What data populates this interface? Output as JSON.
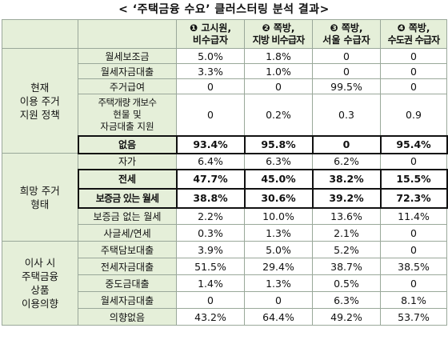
{
  "title": "< ‘주택금융 수요’  클러스터링 분석 결과>",
  "columns": [
    {
      "line1": "❶ 고시원,",
      "line2": "비수급자"
    },
    {
      "line1": "❷ 쪽방,",
      "line2": "지방 비수급자"
    },
    {
      "line1": "❸ 쪽방,",
      "line2": "서울 수급자"
    },
    {
      "line1": "❹ 쪽방,",
      "line2": "수도권 수급자"
    }
  ],
  "sections": [
    {
      "label": [
        "현재",
        "이용 주거",
        "지원 정책"
      ],
      "rows": [
        {
          "label": "월세보조금",
          "values": [
            "5.0%",
            "1.8%",
            "0",
            "0"
          ]
        },
        {
          "label": "월세자금대출",
          "values": [
            "3.3%",
            "1.0%",
            "0",
            "0"
          ]
        },
        {
          "label": "주거급여",
          "values": [
            "0",
            "0",
            "99.5%",
            "0"
          ]
        },
        {
          "label": [
            "주택개량 개보수",
            "현물 및",
            "자금대출 지원"
          ],
          "values": [
            "0",
            "0.2%",
            "0.3",
            "0.9"
          ]
        },
        {
          "label": "없음",
          "values": [
            "93.4%",
            "95.8%",
            "0",
            "95.4%"
          ]
        }
      ]
    },
    {
      "label": [
        "희망 주거",
        "형태"
      ],
      "rows": [
        {
          "label": "자가",
          "values": [
            "6.4%",
            "6.3%",
            "6.2%",
            "0"
          ]
        },
        {
          "label": "전세",
          "values": [
            "47.7%",
            "45.0%",
            "38.2%",
            "15.5%"
          ]
        },
        {
          "label": "보증금 있는 월세",
          "values": [
            "38.8%",
            "30.6%",
            "39.2%",
            "72.3%"
          ]
        },
        {
          "label": "보증금 없는 월세",
          "values": [
            "2.2%",
            "10.0%",
            "13.6%",
            "11.4%"
          ]
        },
        {
          "label": "사글세/연세",
          "values": [
            "0.3%",
            "1.3%",
            "2.1%",
            "0"
          ]
        }
      ]
    },
    {
      "label": [
        "이사 시",
        "주택금융",
        "상품",
        "이용의향"
      ],
      "rows": [
        {
          "label": "주택담보대출",
          "values": [
            "3.9%",
            "5.0%",
            "5.2%",
            "0"
          ]
        },
        {
          "label": "전세자금대출",
          "values": [
            "51.5%",
            "29.4%",
            "38.7%",
            "38.5%"
          ]
        },
        {
          "label": "중도금대출",
          "values": [
            "1.4%",
            "1.3%",
            "0.5%",
            "0"
          ]
        },
        {
          "label": "월세자금대출",
          "values": [
            "0",
            "0",
            "6.3%",
            "8.1%"
          ]
        },
        {
          "label": "의향없음",
          "values": [
            "43.2%",
            "64.4%",
            "49.2%",
            "53.7%"
          ]
        }
      ]
    }
  ]
}
